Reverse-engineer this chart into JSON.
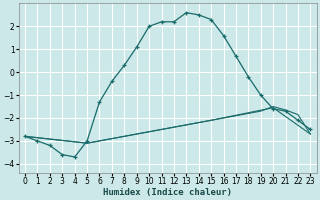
{
  "xlabel": "Humidex (Indice chaleur)",
  "background_color": "#cce8e8",
  "grid_color": "#ffffff",
  "line_color": "#1a6b6b",
  "xlim": [
    -0.5,
    23.5
  ],
  "ylim": [
    -4.4,
    3.0
  ],
  "yticks": [
    -4,
    -3,
    -2,
    -1,
    0,
    1,
    2
  ],
  "xticks": [
    0,
    1,
    2,
    3,
    4,
    5,
    6,
    7,
    8,
    9,
    10,
    11,
    12,
    13,
    14,
    15,
    16,
    17,
    18,
    19,
    20,
    21,
    22,
    23
  ],
  "line1_x": [
    0,
    1,
    2,
    3,
    4,
    5,
    6,
    7,
    8,
    9,
    10,
    11,
    12,
    13,
    14,
    15,
    16,
    17,
    18,
    19,
    20,
    21,
    22,
    23
  ],
  "line1_y": [
    -2.8,
    -3.0,
    -3.2,
    -3.6,
    -3.7,
    -3.0,
    -1.3,
    -0.4,
    0.3,
    1.1,
    2.0,
    2.2,
    2.2,
    2.6,
    2.5,
    2.3,
    1.6,
    0.7,
    -0.2,
    -1.0,
    -1.6,
    -1.7,
    -2.1,
    -2.5
  ],
  "line2_x": [
    0,
    5,
    10,
    15,
    20,
    23
  ],
  "line2_y": [
    -2.8,
    -3.1,
    -2.6,
    -2.1,
    -1.55,
    -2.7
  ],
  "line3_x": [
    0,
    5,
    10,
    15,
    19,
    20,
    21,
    22,
    23
  ],
  "line3_y": [
    -2.8,
    -3.1,
    -2.6,
    -2.1,
    -1.7,
    -1.5,
    -1.65,
    -1.85,
    -2.7
  ]
}
